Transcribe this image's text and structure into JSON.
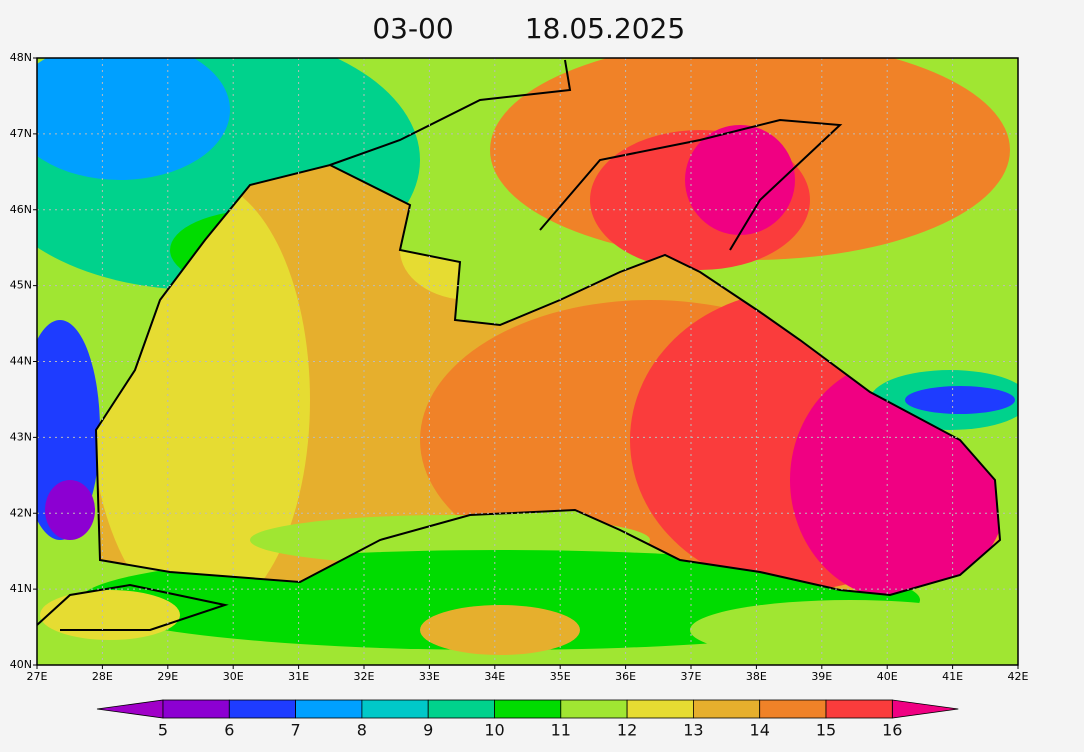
{
  "header": {
    "time": "03-00",
    "date": "18.05.2025"
  },
  "axes": {
    "lat_labels": [
      "48N",
      "47N",
      "46N",
      "45N",
      "44N",
      "43N",
      "42N",
      "41N",
      "40N"
    ],
    "lon_labels": [
      "27E",
      "28E",
      "29E",
      "30E",
      "31E",
      "32E",
      "33E",
      "34E",
      "35E",
      "36E",
      "37E",
      "38E",
      "39E",
      "40E",
      "41E",
      "42E"
    ]
  },
  "colorbar": {
    "levels": [
      5,
      6,
      7,
      8,
      9,
      10,
      11,
      12,
      13,
      14,
      15,
      16
    ],
    "colors": [
      "#a000c8",
      "#8c00d2",
      "#1e3cff",
      "#00a0ff",
      "#00c8c8",
      "#00d28c",
      "#00dc00",
      "#a0e632",
      "#e6dc32",
      "#e6af2d",
      "#f08228",
      "#fa3c3c",
      "#f00082"
    ]
  }
}
